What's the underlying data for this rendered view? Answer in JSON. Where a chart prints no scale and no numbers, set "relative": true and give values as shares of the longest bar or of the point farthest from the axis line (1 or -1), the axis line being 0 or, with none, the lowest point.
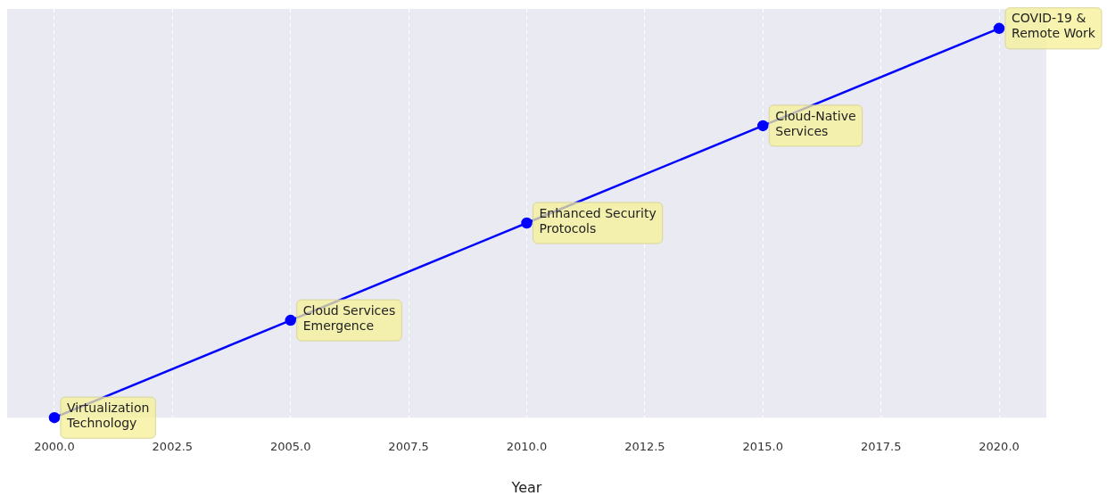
{
  "chart_data": {
    "type": "line",
    "xlabel": "Year",
    "relative": true,
    "x": [
      2000,
      2005,
      2010,
      2015,
      2020
    ],
    "series": [
      {
        "color": "#0000ff",
        "values": [
          0,
          0.25,
          0.5,
          0.75,
          1
        ]
      }
    ],
    "xlim": [
      1999,
      2021
    ],
    "xticks": [
      {
        "value": 2000,
        "label": "2000.0"
      },
      {
        "value": 2002.5,
        "label": "2002.5"
      },
      {
        "value": 2005,
        "label": "2005.0"
      },
      {
        "value": 2007.5,
        "label": "2007.5"
      },
      {
        "value": 2010,
        "label": "2010.0"
      },
      {
        "value": 2012.5,
        "label": "2012.5"
      },
      {
        "value": 2015,
        "label": "2015.0"
      },
      {
        "value": 2017.5,
        "label": "2017.5"
      },
      {
        "value": 2020,
        "label": "2020.0"
      }
    ],
    "grid": "x",
    "marker": "circle",
    "line_style": "solid",
    "legend": false,
    "annotations": [
      {
        "text": "Virtualization\nTechnology",
        "x": 2000,
        "y": 0
      },
      {
        "text": "Cloud Services\nEmergence",
        "x": 2005,
        "y": 0.25
      },
      {
        "text": "Enhanced Security\nProtocols",
        "x": 2010,
        "y": 0.5
      },
      {
        "text": "Cloud-Native\nServices",
        "x": 2015,
        "y": 0.75
      },
      {
        "text": "COVID-19 &\nRemote Work",
        "x": 2020,
        "y": 1
      }
    ]
  }
}
